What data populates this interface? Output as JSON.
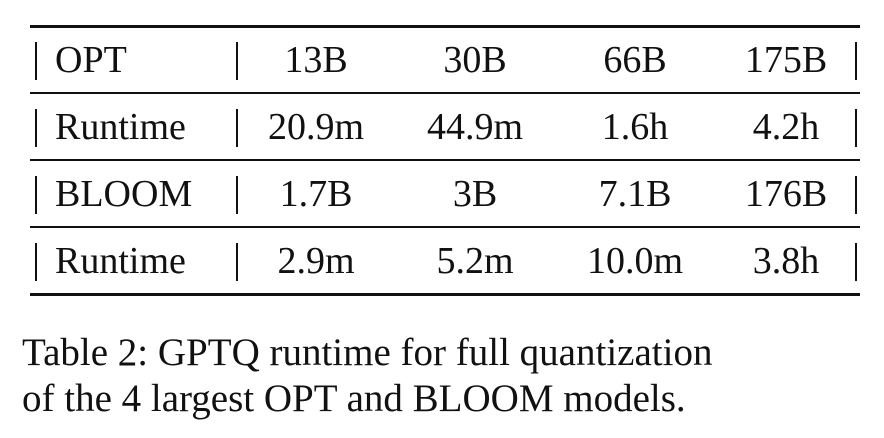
{
  "table": {
    "rows": [
      {
        "label": "OPT",
        "cells": [
          "13B",
          "30B",
          "66B",
          "175B"
        ]
      },
      {
        "label": "Runtime",
        "cells": [
          "20.9m",
          "44.9m",
          "1.6h",
          "4.2h"
        ]
      },
      {
        "label": "BLOOM",
        "cells": [
          "1.7B",
          "3B",
          "7.1B",
          "176B"
        ]
      },
      {
        "label": "Runtime",
        "cells": [
          "2.9m",
          "5.2m",
          "10.0m",
          "3.8h"
        ]
      }
    ]
  },
  "caption": {
    "line1": "Table 2: GPTQ runtime for full quantization",
    "line2": "of the 4 largest OPT and BLOOM models."
  }
}
